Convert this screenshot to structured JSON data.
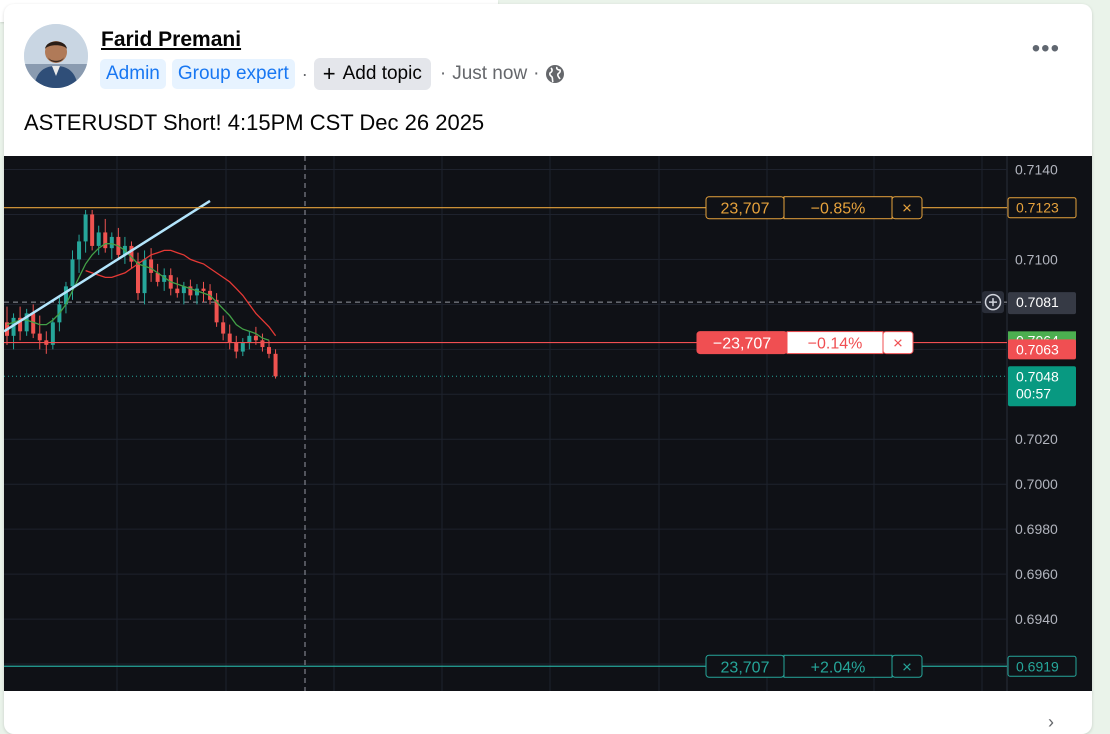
{
  "post": {
    "author": "Farid Premani",
    "badges": [
      "Admin",
      "Group expert"
    ],
    "separator": "·",
    "add_topic": "Add topic",
    "timestamp": "Just now",
    "text": "ASTERUSDT Short! 4:15PM CST Dec 26 2025",
    "more_icon": "more-horizontal-icon",
    "visibility_icon": "globe-icon"
  },
  "chart_data": {
    "type": "candlestick",
    "symbol": "ASTERUSDT",
    "y_ticks": [
      "0.7140",
      "0.7100",
      "0.7020",
      "0.7000",
      "0.6980",
      "0.6960",
      "0.6940"
    ],
    "ylim": [
      0.6908,
      0.7146
    ],
    "price_labels": [
      {
        "value": "0.7123",
        "kind": "order-line"
      },
      {
        "value": "0.7081",
        "kind": "crosshair"
      },
      {
        "value": "0.7064",
        "kind": "ma"
      },
      {
        "value": "0.7063",
        "kind": "position"
      },
      {
        "value": "0.7048",
        "kind": "last-price",
        "countdown": "00:57"
      },
      {
        "value": "0.6919",
        "kind": "order-line"
      }
    ],
    "order_lines": [
      {
        "name": "stop-loss",
        "price": 0.7123,
        "qty": "23,707",
        "pnl": "−0.85%",
        "color": "#e6a23c"
      },
      {
        "name": "position",
        "price": 0.7063,
        "qty": "−23,707",
        "pnl": "−0.14%",
        "color": "#f04f52"
      },
      {
        "name": "take-profit",
        "price": 0.6919,
        "qty": "23,707",
        "pnl": "+2.04%",
        "color": "#26a69a"
      }
    ],
    "close_symbol": "×",
    "candles": [
      [
        0.7072,
        0.7079,
        0.7062,
        0.7066
      ],
      [
        0.7066,
        0.7076,
        0.706,
        0.7074
      ],
      [
        0.7074,
        0.7079,
        0.7064,
        0.7068
      ],
      [
        0.7068,
        0.7078,
        0.7066,
        0.7076
      ],
      [
        0.7076,
        0.708,
        0.7065,
        0.7067
      ],
      [
        0.7067,
        0.7075,
        0.706,
        0.7064
      ],
      [
        0.7064,
        0.7068,
        0.7058,
        0.7062
      ],
      [
        0.7062,
        0.7074,
        0.706,
        0.7072
      ],
      [
        0.7072,
        0.7083,
        0.7068,
        0.708
      ],
      [
        0.708,
        0.709,
        0.7076,
        0.7088
      ],
      [
        0.7088,
        0.7104,
        0.7082,
        0.71
      ],
      [
        0.71,
        0.7111,
        0.7094,
        0.7108
      ],
      [
        0.7108,
        0.7122,
        0.7103,
        0.712
      ],
      [
        0.712,
        0.7122,
        0.7104,
        0.7106
      ],
      [
        0.7106,
        0.7115,
        0.7102,
        0.7112
      ],
      [
        0.7112,
        0.7118,
        0.7103,
        0.7105
      ],
      [
        0.7105,
        0.7112,
        0.71,
        0.711
      ],
      [
        0.711,
        0.7114,
        0.71,
        0.7102
      ],
      [
        0.7102,
        0.711,
        0.7098,
        0.7106
      ],
      [
        0.7106,
        0.7108,
        0.7096,
        0.7099
      ],
      [
        0.7099,
        0.7103,
        0.7082,
        0.7085
      ],
      [
        0.7085,
        0.7104,
        0.708,
        0.71
      ],
      [
        0.71,
        0.7105,
        0.709,
        0.7094
      ],
      [
        0.7094,
        0.7098,
        0.7088,
        0.709
      ],
      [
        0.709,
        0.7096,
        0.7086,
        0.7093
      ],
      [
        0.7093,
        0.7096,
        0.7084,
        0.7087
      ],
      [
        0.7087,
        0.7092,
        0.7083,
        0.7085
      ],
      [
        0.7085,
        0.709,
        0.708,
        0.7088
      ],
      [
        0.7088,
        0.7091,
        0.7082,
        0.7084
      ],
      [
        0.7084,
        0.7089,
        0.708,
        0.7087
      ],
      [
        0.7087,
        0.709,
        0.7081,
        0.7086
      ],
      [
        0.7086,
        0.7089,
        0.708,
        0.7082
      ],
      [
        0.7082,
        0.7085,
        0.707,
        0.7072
      ],
      [
        0.7072,
        0.7075,
        0.7064,
        0.7067
      ],
      [
        0.7067,
        0.7071,
        0.706,
        0.7063
      ],
      [
        0.7063,
        0.7066,
        0.7056,
        0.7059
      ],
      [
        0.7059,
        0.7065,
        0.7057,
        0.7063
      ],
      [
        0.7063,
        0.7068,
        0.706,
        0.7066
      ],
      [
        0.7066,
        0.707,
        0.7062,
        0.7064
      ],
      [
        0.7064,
        0.7067,
        0.7059,
        0.7061
      ],
      [
        0.7061,
        0.7064,
        0.7056,
        0.7058
      ],
      [
        0.7058,
        0.706,
        0.7047,
        0.7048
      ]
    ],
    "ma_red": [
      0.7095,
      0.7094,
      0.7093,
      0.7092,
      0.7092,
      0.7093,
      0.7094,
      0.7096,
      0.7098,
      0.71,
      0.7102,
      0.7103,
      0.7104,
      0.7104,
      0.7103,
      0.7102,
      0.71,
      0.7099,
      0.7098,
      0.7096,
      0.7094,
      0.7092,
      0.709,
      0.7087,
      0.7084,
      0.708,
      0.7076,
      0.7073,
      0.707,
      0.7066
    ],
    "ma_green": [
      0.7071,
      0.7072,
      0.7073,
      0.7073,
      0.7072,
      0.7071,
      0.7071,
      0.7073,
      0.7076,
      0.708,
      0.7086,
      0.7092,
      0.7098,
      0.7102,
      0.7105,
      0.7107,
      0.7107,
      0.7106,
      0.7104,
      0.7101,
      0.7098,
      0.7097,
      0.7096,
      0.7094,
      0.7092,
      0.709,
      0.7089,
      0.7088,
      0.7087,
      0.7086,
      0.7085,
      0.7084,
      0.7081,
      0.7078,
      0.7075,
      0.7071,
      0.7069,
      0.7068,
      0.7067,
      0.7065,
      0.7064
    ],
    "trendline": [
      [
        0.7068,
        0
      ],
      [
        0.7126,
        1
      ]
    ]
  }
}
